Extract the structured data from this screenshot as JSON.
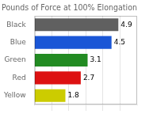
{
  "chart_data": {
    "type": "bar",
    "orientation": "horizontal",
    "title": "Pounds of Force at 100% Elongation",
    "categories": [
      "Black",
      "Blue",
      "Green",
      "Red",
      "Yellow"
    ],
    "values": [
      4.9,
      4.5,
      3.1,
      2.7,
      1.8
    ],
    "colors": [
      "#606060",
      "#1a56d6",
      "#228B22",
      "#dd1111",
      "#cccc00"
    ],
    "xlim": [
      0,
      6
    ],
    "xticks": [
      1,
      2,
      3,
      4,
      5
    ],
    "grid": true,
    "data_labels": true,
    "tick_labels": "y"
  }
}
